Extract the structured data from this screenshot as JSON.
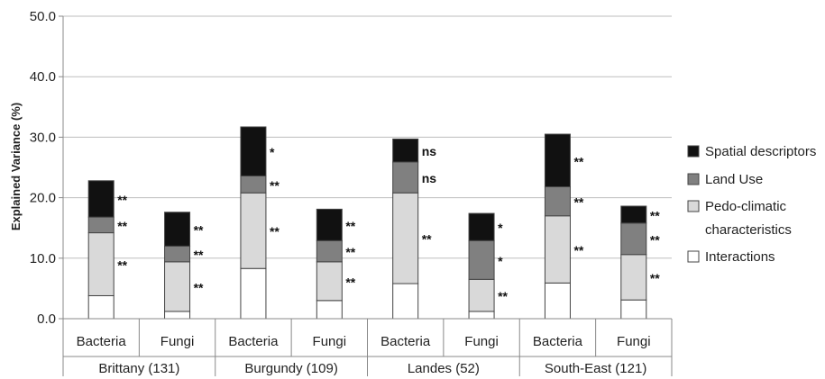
{
  "chart_data": {
    "type": "bar",
    "stacked": true,
    "ylabel": "Explained Variance (%)",
    "ylim": [
      0,
      50
    ],
    "yticks": [
      "0.0",
      "10.0",
      "20.0",
      "30.0",
      "40.0",
      "50.0"
    ],
    "grid": true,
    "legend_position": "right",
    "categories": [
      "Bacteria",
      "Fungi",
      "Bacteria",
      "Fungi",
      "Bacteria",
      "Fungi",
      "Bacteria",
      "Fungi"
    ],
    "groups": [
      {
        "label": "Brittany (131)",
        "span": [
          0,
          1
        ]
      },
      {
        "label": "Burgundy (109)",
        "span": [
          2,
          3
        ]
      },
      {
        "label": "Landes (52)",
        "span": [
          4,
          5
        ]
      },
      {
        "label": "South-East (121)",
        "span": [
          6,
          7
        ]
      }
    ],
    "series": [
      {
        "name": "Interactions",
        "color": "#ffffff",
        "values": [
          3.8,
          1.2,
          8.3,
          3.0,
          5.8,
          1.2,
          5.9,
          3.1
        ]
      },
      {
        "name": "Pedo-climatic characteristics",
        "color": "#d9d9d9",
        "values": [
          10.4,
          8.2,
          12.5,
          6.4,
          15.0,
          5.3,
          11.1,
          7.5
        ]
      },
      {
        "name": "Land Use",
        "color": "#808080",
        "values": [
          2.6,
          2.6,
          2.8,
          3.5,
          5.1,
          6.4,
          4.8,
          5.2
        ]
      },
      {
        "name": "Spatial descriptors",
        "color": "#111111",
        "values": [
          6.0,
          5.6,
          8.1,
          5.2,
          3.8,
          4.5,
          8.7,
          2.8
        ]
      }
    ],
    "significance": [
      {
        "Pedo-climatic characteristics": "**",
        "Land Use": "**",
        "Spatial descriptors": "**"
      },
      {
        "Pedo-climatic characteristics": "**",
        "Land Use": "**",
        "Spatial descriptors": "**"
      },
      {
        "Pedo-climatic characteristics": "**",
        "Land Use": "**",
        "Spatial descriptors": "*"
      },
      {
        "Pedo-climatic characteristics": "**",
        "Land Use": "**",
        "Spatial descriptors": "**"
      },
      {
        "Pedo-climatic characteristics": "**",
        "Land Use": "ns",
        "Spatial descriptors": "ns"
      },
      {
        "Pedo-climatic characteristics": "**",
        "Land Use": "*",
        "Spatial descriptors": "*"
      },
      {
        "Pedo-climatic characteristics": "**",
        "Land Use": "**",
        "Spatial descriptors": "**"
      },
      {
        "Pedo-climatic characteristics": "**",
        "Land Use": "**",
        "Spatial descriptors": "**"
      }
    ],
    "legend": [
      {
        "label": "Spatial descriptors",
        "color": "#111111"
      },
      {
        "label": "Land Use",
        "color": "#808080"
      },
      {
        "label": "Pedo-climatic",
        "color": "#d9d9d9"
      },
      {
        "label": "characteristics",
        "color": ""
      },
      {
        "label": "Interactions",
        "color": "#ffffff"
      }
    ]
  }
}
